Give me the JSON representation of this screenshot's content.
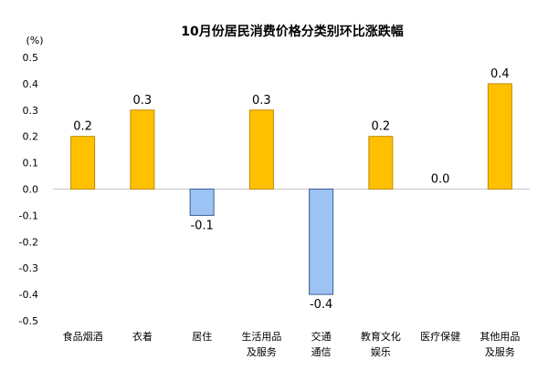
{
  "chart_data": {
    "type": "bar",
    "title": "10月份居民消费价格分类别环比涨跌幅",
    "unit": "(%)",
    "ylim": [
      -0.5,
      0.5
    ],
    "yticks": [
      "0.5",
      "0.4",
      "0.3",
      "0.2",
      "0.1",
      "0.0",
      "-0.1",
      "-0.2",
      "-0.3",
      "-0.4",
      "-0.5"
    ],
    "ytick_values": [
      0.5,
      0.4,
      0.3,
      0.2,
      0.1,
      0.0,
      -0.1,
      -0.2,
      -0.3,
      -0.4,
      -0.5
    ],
    "categories": [
      [
        "食品烟酒"
      ],
      [
        "衣着"
      ],
      [
        "居住"
      ],
      [
        "生活用品",
        "及服务"
      ],
      [
        "交通",
        "通信"
      ],
      [
        "教育文化",
        "娱乐"
      ],
      [
        "医疗保健"
      ],
      [
        "其他用品",
        "及服务"
      ]
    ],
    "values": [
      0.2,
      0.3,
      -0.1,
      0.3,
      -0.4,
      0.2,
      0.0,
      0.4
    ],
    "data_labels": [
      "0.2",
      "0.3",
      "-0.1",
      "0.3",
      "-0.4",
      "0.2",
      "0.0",
      "0.4"
    ],
    "colors": {
      "positive_fill": "#FFC000",
      "positive_stroke": "#C08A00",
      "negative_fill": "#9DC3F5",
      "negative_stroke": "#3A5F8F"
    }
  }
}
